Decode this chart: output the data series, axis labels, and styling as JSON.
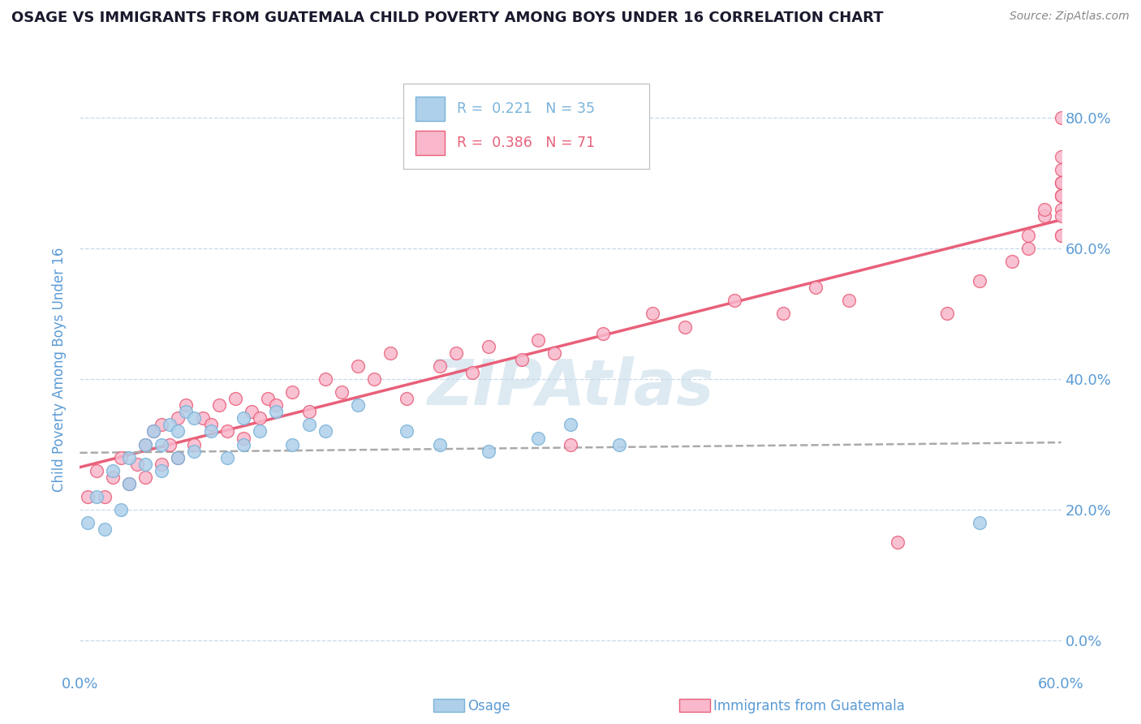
{
  "title": "OSAGE VS IMMIGRANTS FROM GUATEMALA CHILD POVERTY AMONG BOYS UNDER 16 CORRELATION CHART",
  "source": "Source: ZipAtlas.com",
  "ylabel": "Child Poverty Among Boys Under 16",
  "watermark": "ZIPAtlas",
  "xlim": [
    0.0,
    0.6
  ],
  "ylim": [
    -0.05,
    0.88
  ],
  "yticks": [
    0.0,
    0.2,
    0.4,
    0.6,
    0.8
  ],
  "ytick_labels_right": [
    "0.0%",
    "20.0%",
    "40.0%",
    "60.0%",
    "80.0%"
  ],
  "xticks": [
    0.0,
    0.6
  ],
  "xtick_labels": [
    "0.0%",
    "60.0%"
  ],
  "legend_R1": "R =  0.221",
  "legend_N1": "N = 35",
  "legend_R2": "R =  0.386",
  "legend_N2": "N = 71",
  "series1_color": "#afd0ea",
  "series2_color": "#f9b8cc",
  "line1_color": "#7ab3d9",
  "line2_color": "#e8607a",
  "grid_color": "#c8d8ea",
  "background_color": "#ffffff",
  "title_color": "#1a1a2e",
  "axis_label_color": "#5b9bd5",
  "watermark_color": "#c8dcea",
  "osage_x": [
    0.005,
    0.01,
    0.015,
    0.02,
    0.025,
    0.03,
    0.03,
    0.04,
    0.04,
    0.045,
    0.05,
    0.05,
    0.055,
    0.06,
    0.06,
    0.065,
    0.07,
    0.07,
    0.08,
    0.09,
    0.1,
    0.1,
    0.11,
    0.12,
    0.13,
    0.14,
    0.15,
    0.17,
    0.2,
    0.22,
    0.25,
    0.28,
    0.3,
    0.33,
    0.55
  ],
  "osage_y": [
    0.18,
    0.22,
    0.17,
    0.26,
    0.2,
    0.24,
    0.28,
    0.27,
    0.3,
    0.32,
    0.26,
    0.3,
    0.33,
    0.28,
    0.32,
    0.35,
    0.29,
    0.34,
    0.32,
    0.28,
    0.3,
    0.34,
    0.32,
    0.35,
    0.3,
    0.33,
    0.32,
    0.36,
    0.32,
    0.3,
    0.29,
    0.31,
    0.33,
    0.3,
    0.18
  ],
  "guatemala_x": [
    0.005,
    0.01,
    0.015,
    0.02,
    0.025,
    0.03,
    0.035,
    0.04,
    0.04,
    0.045,
    0.05,
    0.05,
    0.055,
    0.06,
    0.06,
    0.065,
    0.07,
    0.075,
    0.08,
    0.085,
    0.09,
    0.095,
    0.1,
    0.105,
    0.11,
    0.115,
    0.12,
    0.13,
    0.14,
    0.15,
    0.16,
    0.17,
    0.18,
    0.19,
    0.2,
    0.22,
    0.23,
    0.24,
    0.25,
    0.27,
    0.28,
    0.29,
    0.3,
    0.32,
    0.35,
    0.37,
    0.4,
    0.43,
    0.45,
    0.47,
    0.5,
    0.53,
    0.55,
    0.57,
    0.58,
    0.58,
    0.59,
    0.59,
    0.6,
    0.6,
    0.6,
    0.6,
    0.6,
    0.6,
    0.6,
    0.6,
    0.6,
    0.6,
    0.6,
    0.6,
    0.6
  ],
  "guatemala_y": [
    0.22,
    0.26,
    0.22,
    0.25,
    0.28,
    0.24,
    0.27,
    0.25,
    0.3,
    0.32,
    0.27,
    0.33,
    0.3,
    0.28,
    0.34,
    0.36,
    0.3,
    0.34,
    0.33,
    0.36,
    0.32,
    0.37,
    0.31,
    0.35,
    0.34,
    0.37,
    0.36,
    0.38,
    0.35,
    0.4,
    0.38,
    0.42,
    0.4,
    0.44,
    0.37,
    0.42,
    0.44,
    0.41,
    0.45,
    0.43,
    0.46,
    0.44,
    0.3,
    0.47,
    0.5,
    0.48,
    0.52,
    0.5,
    0.54,
    0.52,
    0.15,
    0.5,
    0.55,
    0.58,
    0.6,
    0.62,
    0.65,
    0.66,
    0.68,
    0.7,
    0.62,
    0.66,
    0.68,
    0.7,
    0.72,
    0.74,
    0.7,
    0.68,
    0.65,
    0.62,
    0.8
  ],
  "osage_reg": [
    0.23,
    0.33
  ],
  "guatemala_reg": [
    0.18,
    0.6
  ]
}
